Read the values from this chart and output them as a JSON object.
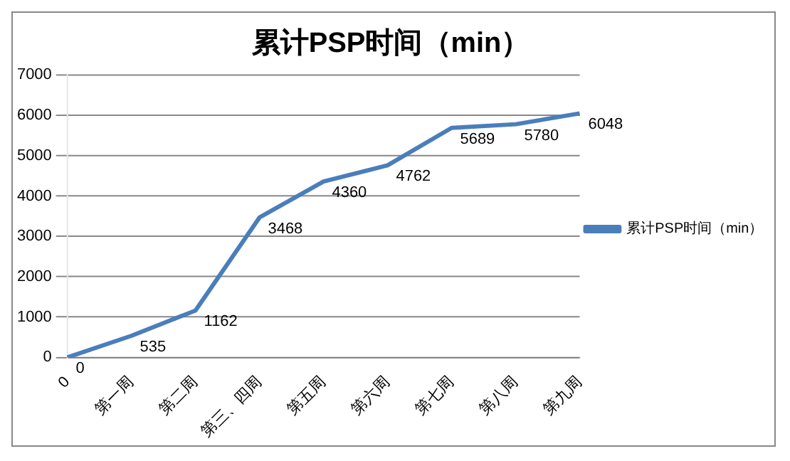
{
  "chart_data": {
    "type": "line",
    "title": "累计PSP时间（min）",
    "categories": [
      "0",
      "第一周",
      "第二周",
      "第三、四周",
      "第五周",
      "第六周",
      "第七周",
      "第八周",
      "第九周"
    ],
    "series": [
      {
        "name": "累计PSP时间（min）",
        "color": "#4a7ebb",
        "values": [
          0,
          535,
          1162,
          3468,
          4360,
          4762,
          5689,
          5780,
          6048
        ]
      }
    ],
    "ylim": [
      0,
      7000
    ],
    "yticks": [
      0,
      1000,
      2000,
      3000,
      4000,
      5000,
      6000,
      7000
    ],
    "grid": "y",
    "legend": "right",
    "data_labels": true,
    "marker": "none",
    "line_style": "solid"
  }
}
